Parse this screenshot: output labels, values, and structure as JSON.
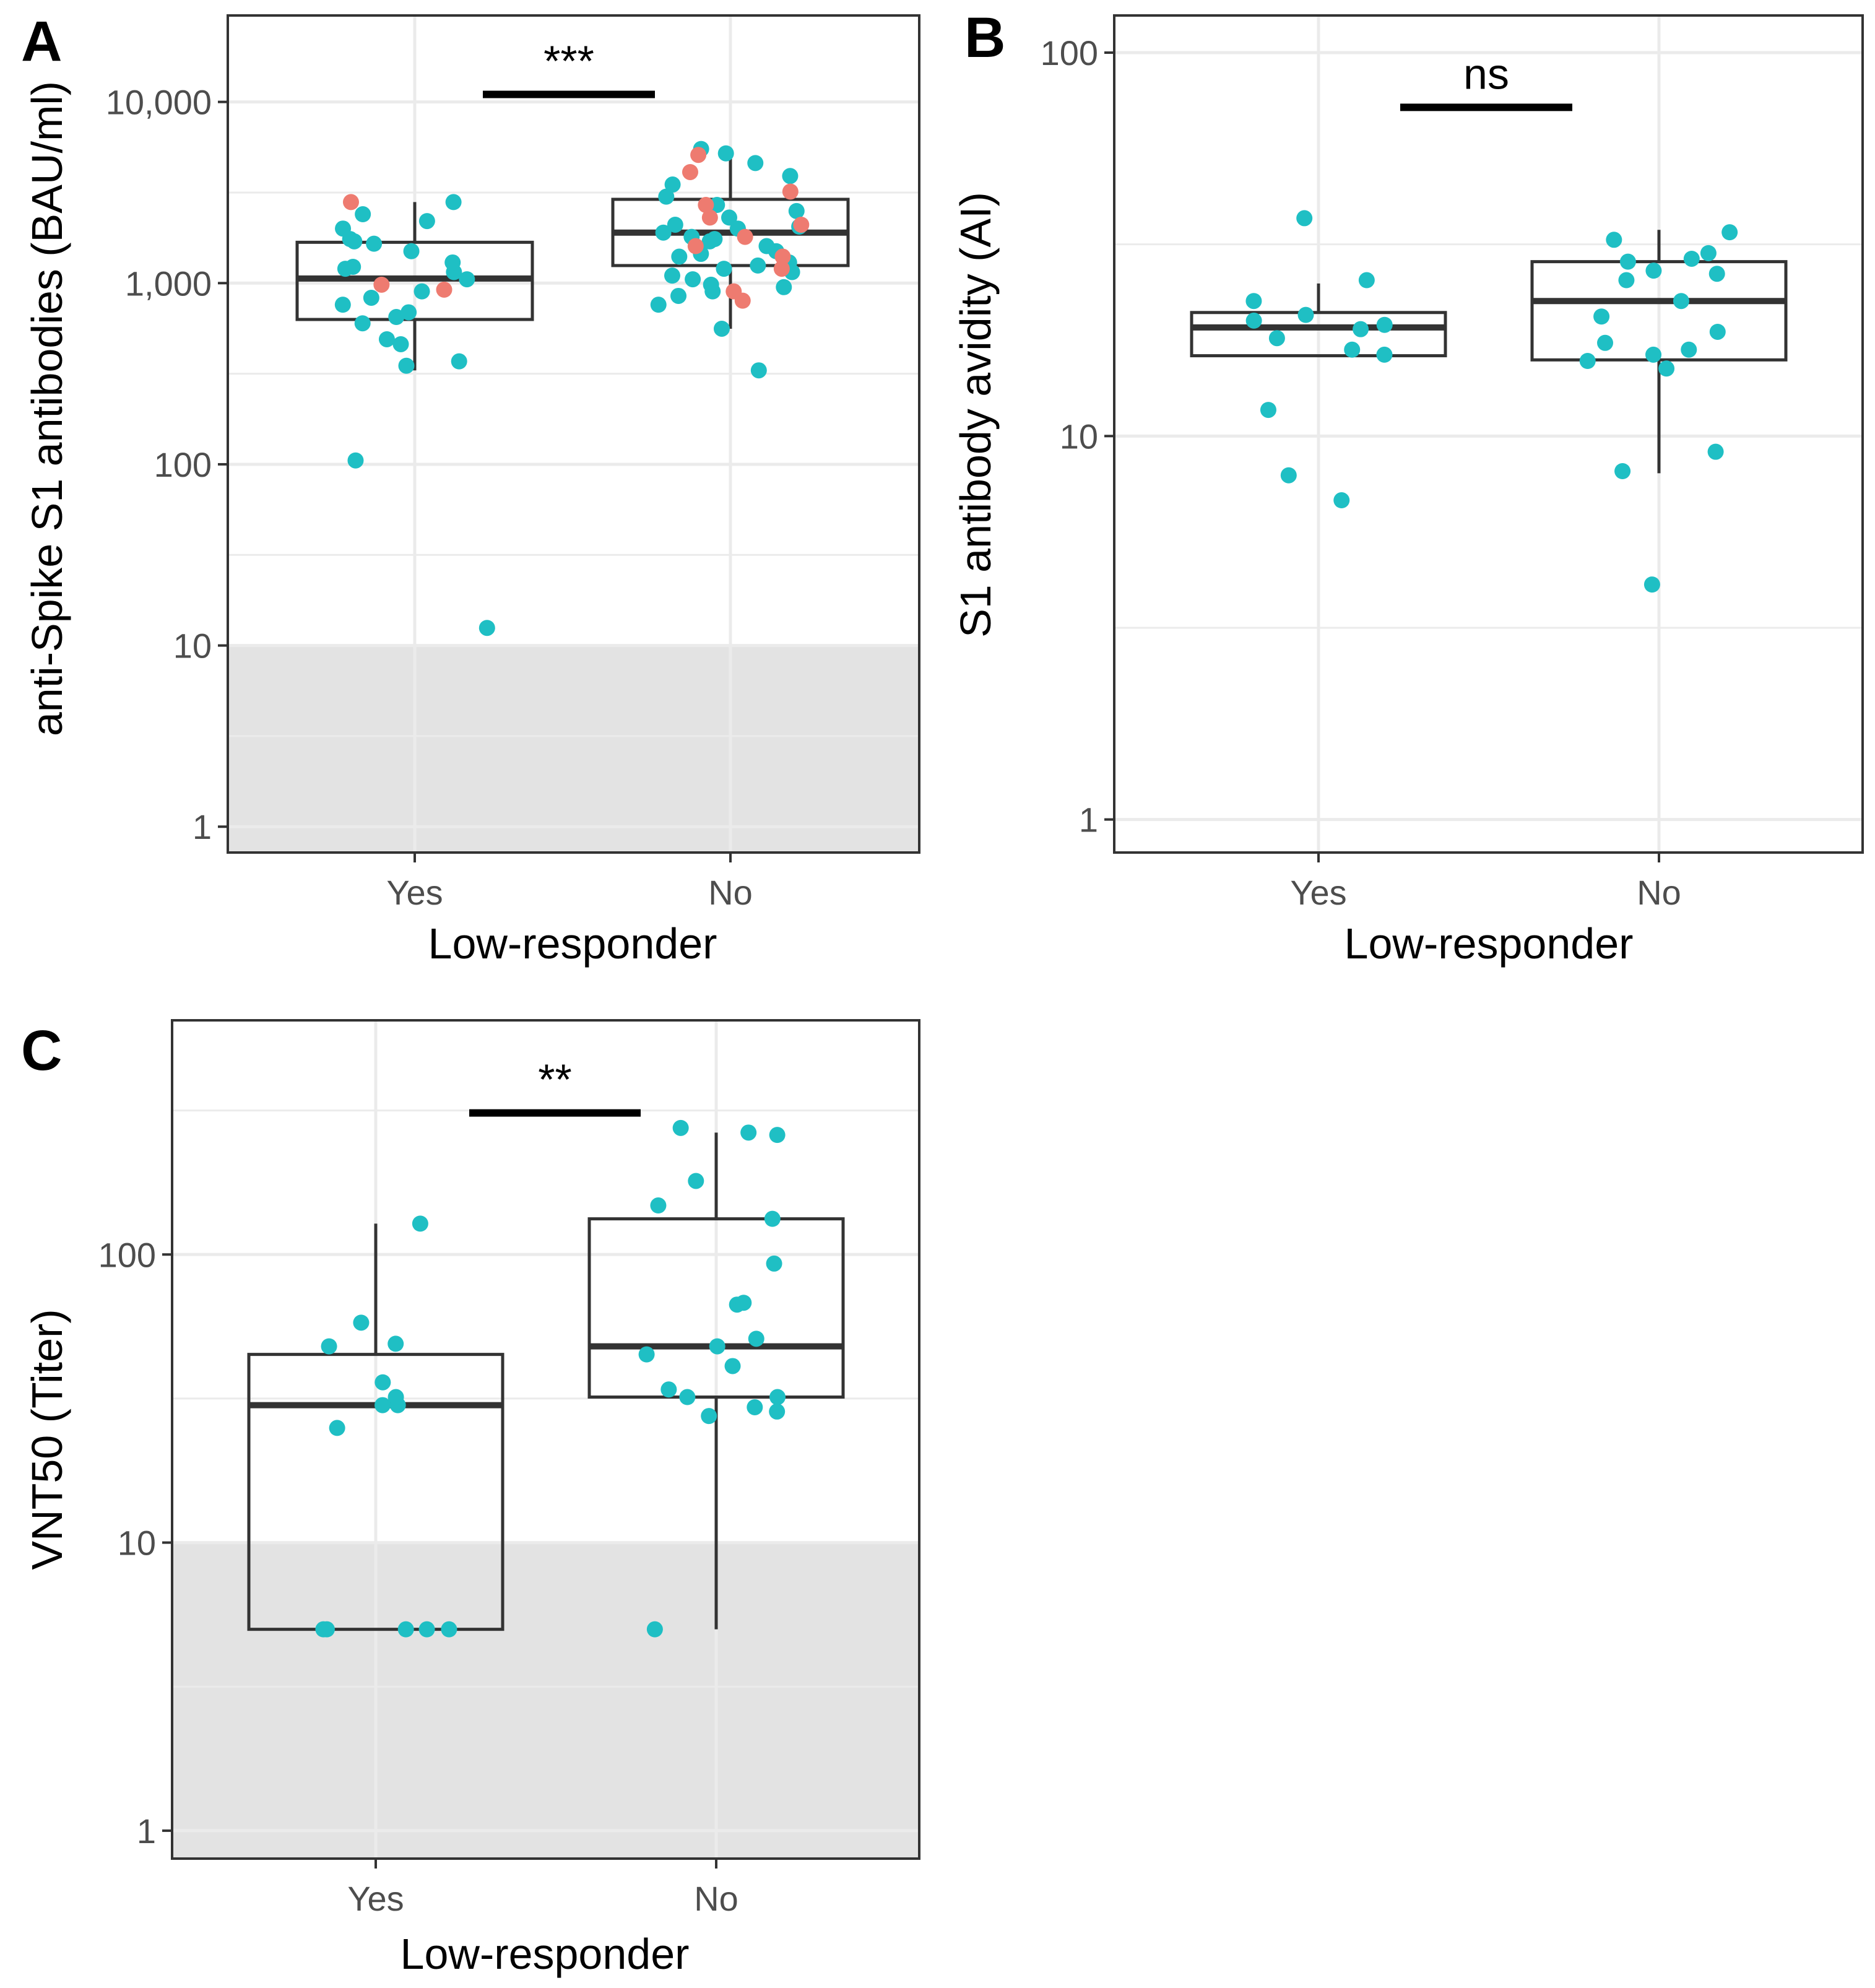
{
  "colors": {
    "teal": "#1fbfc4",
    "salmon": "#ee7b70",
    "shade": "#e3e3e3",
    "grid": "#ebebeb",
    "box": "#333333"
  },
  "chart_data": [
    {
      "panel": "A",
      "type": "box+jitter",
      "scale": "log10",
      "ylim": [
        0.72,
        30000
      ],
      "categories": [
        "Yes",
        "No"
      ],
      "xlabel": "Low-responder",
      "ylabel": "anti-Spike S1 antibodies (BAU/ml)",
      "yticks": [
        1,
        10,
        100,
        1000,
        10000
      ],
      "ytick_labels": [
        "1",
        "10",
        "100",
        "1,000",
        "10,000"
      ],
      "shaded_below": 10,
      "significance": "***",
      "sig_y": 11000,
      "boxes": [
        {
          "category": "Yes",
          "q1": 630,
          "median": 1060,
          "q3": 1680,
          "lower_whisker": 330,
          "upper_whisker": 2800
        },
        {
          "category": "No",
          "q1": 1250,
          "median": 1900,
          "q3": 2900,
          "lower_whisker": 560,
          "upper_whisker": 5400
        }
      ],
      "points": [
        {
          "category": "Yes",
          "series": "teal",
          "values": [
            12.5,
            105,
            350,
            370,
            460,
            490,
            600,
            650,
            690,
            760,
            830,
            900,
            1050,
            1150,
            1200,
            1230,
            1300,
            1500,
            1650,
            1700,
            1750,
            2000,
            2200,
            2400,
            2800
          ]
        },
        {
          "category": "Yes",
          "series": "salmon",
          "values": [
            920,
            980,
            2800
          ]
        },
        {
          "category": "No",
          "series": "teal",
          "values": [
            330,
            560,
            760,
            850,
            900,
            950,
            980,
            1050,
            1100,
            1150,
            1200,
            1250,
            1300,
            1400,
            1450,
            1500,
            1600,
            1700,
            1750,
            1800,
            1900,
            2000,
            2050,
            2100,
            2300,
            2500,
            2700,
            3000,
            3500,
            3900,
            4600,
            5200,
            5500
          ]
        },
        {
          "category": "No",
          "series": "salmon",
          "values": [
            800,
            900,
            1200,
            1400,
            1600,
            1800,
            2100,
            2300,
            2700,
            3200,
            4100,
            5100
          ]
        }
      ]
    },
    {
      "panel": "B",
      "type": "box+jitter",
      "scale": "log10",
      "ylim": [
        0.82,
        125
      ],
      "categories": [
        "Yes",
        "No"
      ],
      "xlabel": "Low-responder",
      "ylabel": "S1 antibody avidity (AI)",
      "yticks": [
        1,
        10,
        100
      ],
      "ytick_labels": [
        "1",
        "10",
        "100"
      ],
      "significance": "ns",
      "sig_y": 72,
      "boxes": [
        {
          "category": "Yes",
          "q1": 16.2,
          "median": 19.2,
          "q3": 21.0,
          "lower_whisker": 16.2,
          "upper_whisker": 25.0
        },
        {
          "category": "No",
          "q1": 15.8,
          "median": 22.5,
          "q3": 28.5,
          "lower_whisker": 8.0,
          "upper_whisker": 34.5
        }
      ],
      "points": [
        {
          "category": "Yes",
          "series": "teal",
          "values": [
            6.8,
            7.9,
            11.7,
            16.3,
            16.8,
            18.0,
            19.0,
            19.5,
            20.0,
            20.7,
            22.5,
            25.5,
            37.0
          ]
        },
        {
          "category": "No",
          "series": "teal",
          "values": [
            4.1,
            8.1,
            9.1,
            15.0,
            15.7,
            16.3,
            16.8,
            17.5,
            18.7,
            20.5,
            22.5,
            25.5,
            26.5,
            27.0,
            28.5,
            29.0,
            30.0,
            32.5,
            34.0
          ]
        }
      ]
    },
    {
      "panel": "C",
      "type": "box+jitter",
      "scale": "log10",
      "ylim": [
        0.8,
        650
      ],
      "categories": [
        "Yes",
        "No"
      ],
      "xlabel": "Low-responder",
      "ylabel": "VNT50 (Titer)",
      "yticks": [
        1,
        10,
        100
      ],
      "ytick_labels": [
        "1",
        "10",
        "100"
      ],
      "shaded_below": 10,
      "significance": "**",
      "sig_y": 310,
      "boxes": [
        {
          "category": "Yes",
          "q1": 5,
          "median": 30,
          "q3": 45,
          "lower_whisker": 5,
          "upper_whisker": 128
        },
        {
          "category": "No",
          "q1": 32,
          "median": 48,
          "q3": 133,
          "lower_whisker": 5,
          "upper_whisker": 265
        }
      ],
      "points": [
        {
          "category": "Yes",
          "series": "teal",
          "values": [
            5,
            5,
            5,
            5,
            5,
            25,
            30,
            30,
            32,
            36,
            48,
            49,
            58,
            128
          ]
        },
        {
          "category": "No",
          "series": "teal",
          "values": [
            5,
            27.5,
            28.5,
            29.5,
            32,
            32,
            34,
            41,
            45,
            48,
            51,
            67,
            68,
            93,
            133,
            148,
            180,
            260,
            265,
            275
          ]
        }
      ]
    }
  ]
}
